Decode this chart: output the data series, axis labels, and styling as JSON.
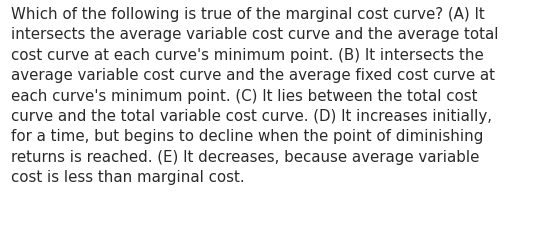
{
  "text": "Which of the following is true of the marginal cost curve? (A) It\nintersects the average variable cost curve and the average total\ncost curve at each curve's minimum point. (B) It intersects the\naverage variable cost curve and the average fixed cost curve at\neach curve's minimum point. (C) It lies between the total cost\ncurve and the total variable cost curve. (D) It increases initially,\nfor a time, but begins to decline when the point of diminishing\nreturns is reached. (E) It decreases, because average variable\ncost is less than marginal cost.",
  "background_color": "#ffffff",
  "text_color": "#2a2a2a",
  "font_size": 10.8,
  "fig_width": 5.58,
  "fig_height": 2.3
}
